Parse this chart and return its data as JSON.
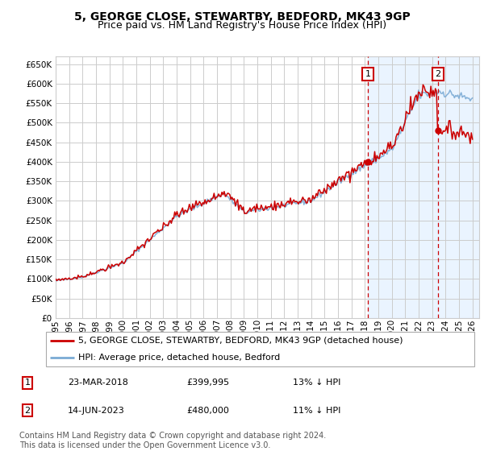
{
  "title": "5, GEORGE CLOSE, STEWARTBY, BEDFORD, MK43 9GP",
  "subtitle": "Price paid vs. HM Land Registry's House Price Index (HPI)",
  "ylim": [
    0,
    670000
  ],
  "yticks": [
    0,
    50000,
    100000,
    150000,
    200000,
    250000,
    300000,
    350000,
    400000,
    450000,
    500000,
    550000,
    600000,
    650000
  ],
  "background_color": "#ffffff",
  "grid_color": "#cccccc",
  "hpi_line_color": "#7aaad4",
  "price_line_color": "#cc0000",
  "sale1_date": 2018.22,
  "sale1_price": 399995,
  "sale1_label": "1",
  "sale2_date": 2023.45,
  "sale2_price": 480000,
  "sale2_label": "2",
  "shading_color": "#ddeeff",
  "dashed_color": "#cc0000",
  "legend_line1": "5, GEORGE CLOSE, STEWARTBY, BEDFORD, MK43 9GP (detached house)",
  "legend_line2": "HPI: Average price, detached house, Bedford",
  "table_row1_num": "1",
  "table_row1_date": "23-MAR-2018",
  "table_row1_price": "£399,995",
  "table_row1_hpi": "13% ↓ HPI",
  "table_row2_num": "2",
  "table_row2_date": "14-JUN-2023",
  "table_row2_price": "£480,000",
  "table_row2_hpi": "11% ↓ HPI",
  "footer": "Contains HM Land Registry data © Crown copyright and database right 2024.\nThis data is licensed under the Open Government Licence v3.0.",
  "title_fontsize": 10,
  "subtitle_fontsize": 9,
  "axis_fontsize": 7.5,
  "legend_fontsize": 8,
  "table_fontsize": 8,
  "footer_fontsize": 7
}
